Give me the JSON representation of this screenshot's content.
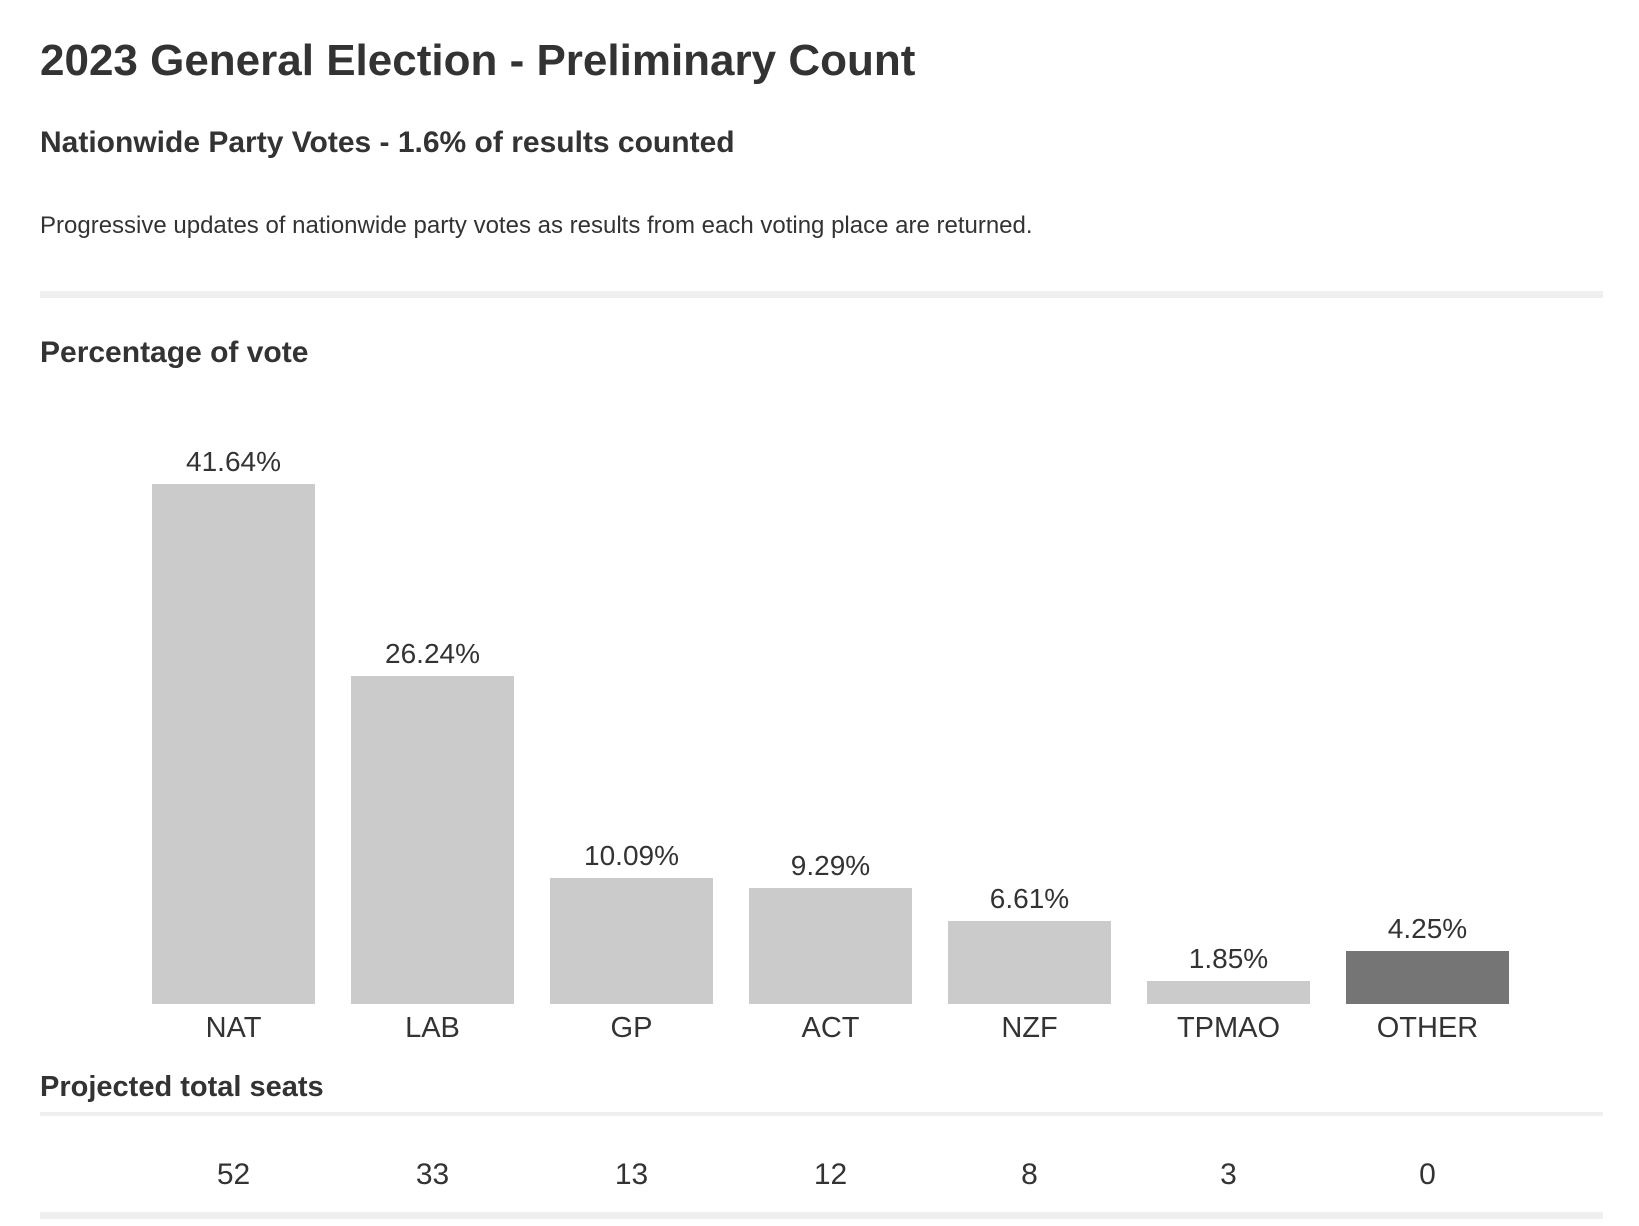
{
  "header": {
    "title": "2023 General Election - Preliminary Count",
    "subtitle": "Nationwide Party Votes - 1.6% of results counted",
    "description": "Progressive updates of nationwide party votes as results from each voting place are returned."
  },
  "chart_data": {
    "type": "bar",
    "title": "Percentage of vote",
    "categories": [
      "NAT",
      "LAB",
      "GP",
      "ACT",
      "NZF",
      "TPMAO",
      "OTHER"
    ],
    "values": [
      41.64,
      26.24,
      10.09,
      9.29,
      6.61,
      1.85,
      4.25
    ],
    "value_labels": [
      "41.64%",
      "26.24%",
      "10.09%",
      "9.29%",
      "6.61%",
      "1.85%",
      "4.25%"
    ],
    "bar_colors": [
      "#cbcbcb",
      "#cbcbcb",
      "#cbcbcb",
      "#cbcbcb",
      "#cbcbcb",
      "#cbcbcb",
      "#757575"
    ],
    "xlabel": "",
    "ylabel": "",
    "ylim": [
      0,
      41.64
    ],
    "grid": false,
    "legend": false,
    "axis_lines": false
  },
  "seats": {
    "title": "Projected total seats",
    "values": [
      "52",
      "33",
      "13",
      "12",
      "8",
      "3",
      "0"
    ]
  },
  "colors": {
    "text": "#333333",
    "bar_light": "#cbcbcb",
    "bar_dark": "#757575",
    "divider": "#efefef"
  }
}
